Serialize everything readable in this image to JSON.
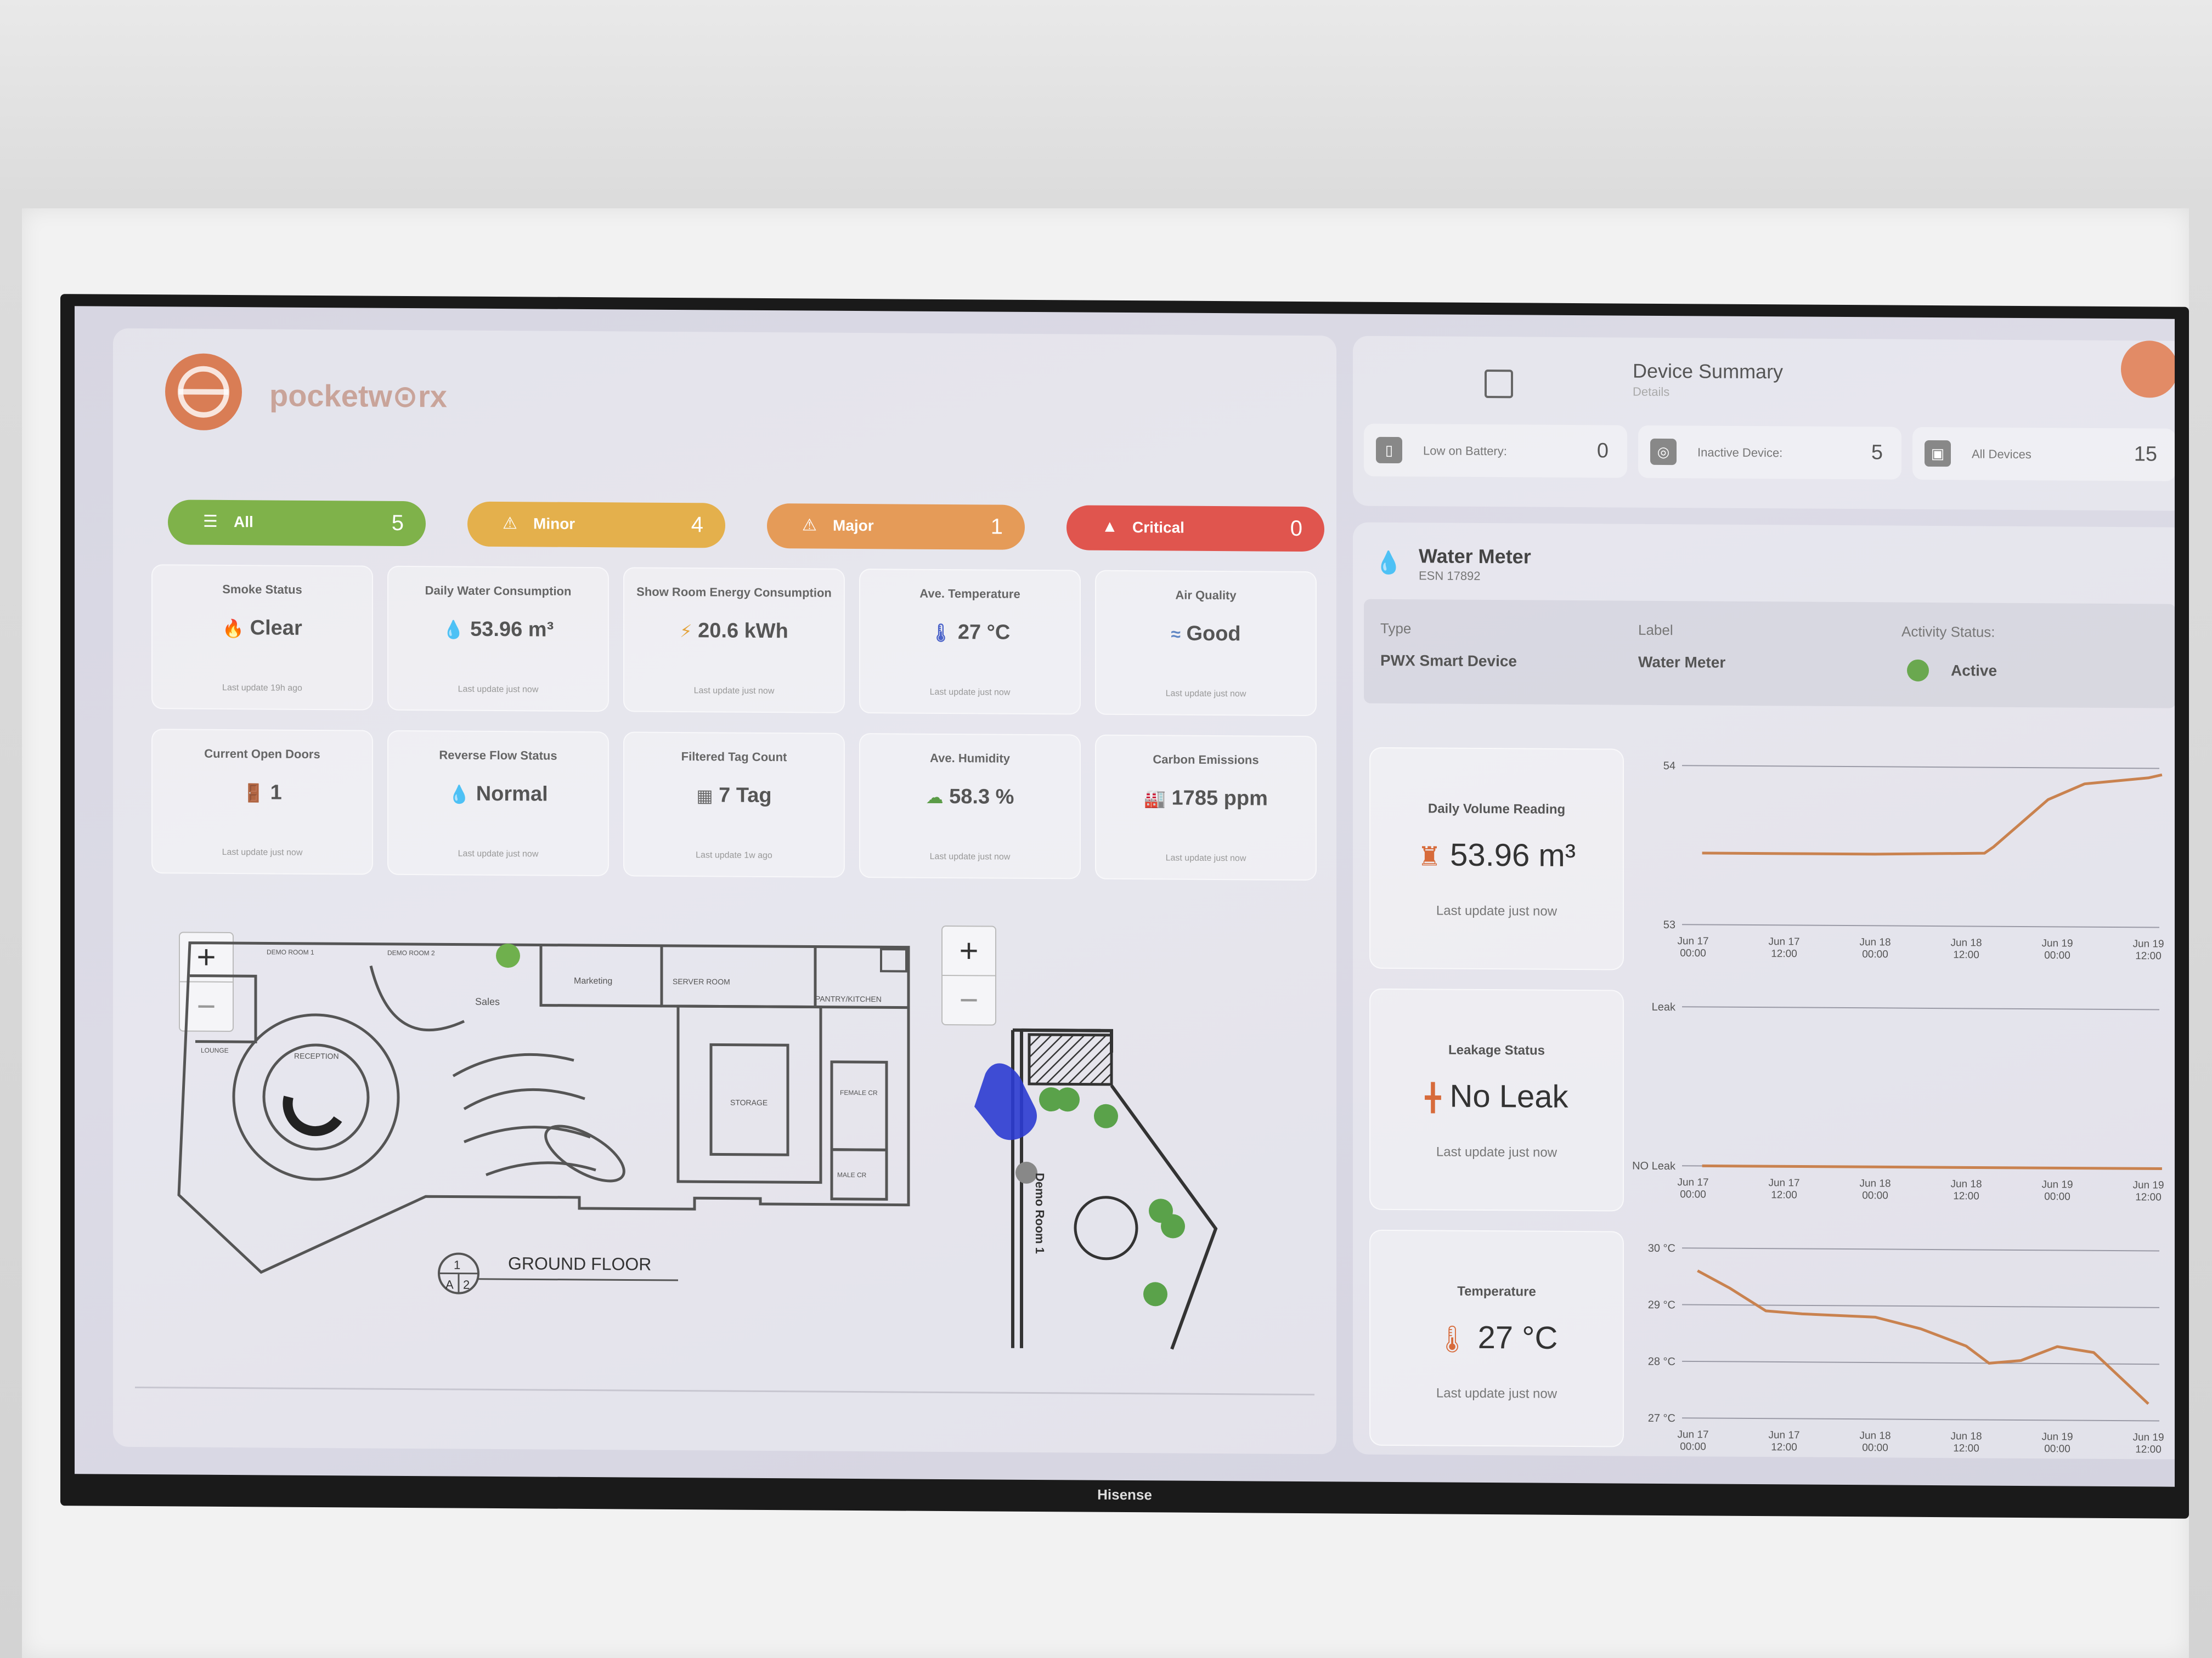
{
  "app": {
    "logo_text": "pocketw⊙rx",
    "tv_brand": "Hisense"
  },
  "alerts": [
    {
      "label": "All",
      "count": "5",
      "color": "#7fb24a"
    },
    {
      "label": "Minor",
      "count": "4",
      "color": "#e4b04c"
    },
    {
      "label": "Major",
      "count": "1",
      "color": "#e59b58"
    },
    {
      "label": "Critical",
      "count": "0",
      "color": "#e0554e"
    }
  ],
  "stats": [
    {
      "title": "Smoke Status",
      "value": "Clear",
      "sub": "Last update 19h ago",
      "icon": "flame-icon",
      "glyph": "🔥"
    },
    {
      "title": "Daily Water Consumption",
      "value": "53.96 m³",
      "sub": "Last update just now",
      "icon": "water-drop-icon",
      "glyph": "💧"
    },
    {
      "title": "Show Room Energy Consumption",
      "value": "20.6 kWh",
      "sub": "Last update just now",
      "icon": "lightning-icon",
      "glyph": "⚡"
    },
    {
      "title": "Ave. Temperature",
      "value": "27 °C",
      "sub": "Last update just now",
      "icon": "thermometer-icon",
      "glyph": "🌡"
    },
    {
      "title": "Air Quality",
      "value": "Good",
      "sub": "Last update just now",
      "icon": "wind-icon",
      "glyph": "≈"
    },
    {
      "title": "Current Open Doors",
      "value": "1",
      "sub": "Last update just now",
      "icon": "door-icon",
      "glyph": "🚪"
    },
    {
      "title": "Reverse Flow Status",
      "value": "Normal",
      "sub": "Last update just now",
      "icon": "flow-icon",
      "glyph": "💧"
    },
    {
      "title": "Filtered Tag Count",
      "value": "7 Tag",
      "sub": "Last update 1w ago",
      "icon": "tag-scan-icon",
      "glyph": "▦"
    },
    {
      "title": "Ave. Humidity",
      "value": "58.3 %",
      "sub": "Last update just now",
      "icon": "cloud-icon",
      "glyph": "☁"
    },
    {
      "title": "Carbon Emissions",
      "value": "1785 ppm",
      "sub": "Last update just now",
      "icon": "factory-icon",
      "glyph": "🏭"
    }
  ],
  "floorplan": {
    "title": "GROUND FLOOR",
    "ref_top": "1",
    "ref_left": "A",
    "ref_right": "2",
    "rooms": [
      "Sales",
      "Marketing",
      "SERVER ROOM",
      "PANTRY/KITCHEN",
      "STORAGE",
      "RECEPTION",
      "LOUNGE",
      "FEMALE CR",
      "MALE CR",
      "DEMO ROOM 1",
      "DEMO ROOM 2"
    ],
    "zoom_in": "+",
    "zoom_out": "−"
  },
  "demo_room": {
    "label": "Demo Room 1",
    "zoom_in": "+",
    "zoom_out": "−"
  },
  "device_summary": {
    "title": "Device Summary",
    "subtitle": "Details",
    "items": [
      {
        "label": "Low on Battery:",
        "count": "0"
      },
      {
        "label": "Inactive Device:",
        "count": "5"
      },
      {
        "label": "All Devices",
        "count": "15"
      }
    ]
  },
  "water_meter": {
    "title": "Water Meter",
    "esn": "ESN 17892",
    "type_label": "Type",
    "type_value": "PWX Smart Device",
    "label_label": "Label",
    "label_value": "Water Meter",
    "status_label": "Activity Status:",
    "status_value": "Active",
    "status_color": "#6aa84f"
  },
  "metrics": [
    {
      "title": "Daily Volume Reading",
      "value": "53.96 m³",
      "sub": "Last update just now"
    },
    {
      "title": "Leakage Status",
      "value": "No Leak",
      "sub": "Last update just now"
    },
    {
      "title": "Temperature",
      "value": "27 °C",
      "sub": "Last update just now"
    }
  ],
  "chart_data": [
    {
      "type": "line",
      "x": [
        "Jun 17 00:00",
        "Jun 17 12:00",
        "Jun 18 00:00",
        "Jun 18 12:00",
        "Jun 19 00:00",
        "Jun 19 12:00"
      ],
      "y_ticks": [
        "54",
        "53"
      ],
      "ylim": [
        53,
        54
      ],
      "series": [
        {
          "points": [
            [
              0.1,
              53.45
            ],
            [
              1.0,
              53.45
            ],
            [
              2.0,
              53.45
            ],
            [
              3.2,
              53.46
            ],
            [
              3.3,
              53.5
            ],
            [
              3.5,
              53.6
            ],
            [
              3.9,
              53.8
            ],
            [
              4.3,
              53.9
            ],
            [
              5.0,
              53.94
            ],
            [
              5.15,
              53.96
            ]
          ],
          "color": "#c9824f"
        }
      ]
    },
    {
      "type": "line",
      "x": [
        "Jun 17 00:00",
        "Jun 17 12:00",
        "Jun 18 00:00",
        "Jun 18 12:00",
        "Jun 19 00:00",
        "Jun 19 12:00"
      ],
      "y_ticks": [
        "Leak",
        "NO Leak"
      ],
      "ylim": [
        0,
        1
      ],
      "series": [
        {
          "points": [
            [
              0.1,
              0
            ],
            [
              5.15,
              0
            ]
          ],
          "color": "#c9824f"
        }
      ]
    },
    {
      "type": "line",
      "x": [
        "Jun 17 00:00",
        "Jun 17 12:00",
        "Jun 18 00:00",
        "Jun 18 12:00",
        "Jun 19 00:00",
        "Jun 19 12:00"
      ],
      "y_ticks": [
        "30 °C",
        "29 °C",
        "28 °C",
        "27 °C"
      ],
      "ylim": [
        27,
        30
      ],
      "series": [
        {
          "points": [
            [
              0.05,
              29.6
            ],
            [
              0.4,
              29.3
            ],
            [
              0.8,
              28.9
            ],
            [
              1.2,
              28.85
            ],
            [
              2.0,
              28.8
            ],
            [
              2.5,
              28.6
            ],
            [
              3.0,
              28.3
            ],
            [
              3.25,
              28.0
            ],
            [
              3.6,
              28.05
            ],
            [
              4.0,
              28.3
            ],
            [
              4.4,
              28.2
            ],
            [
              5.0,
              27.3
            ]
          ],
          "color": "#c9824f"
        }
      ]
    }
  ]
}
